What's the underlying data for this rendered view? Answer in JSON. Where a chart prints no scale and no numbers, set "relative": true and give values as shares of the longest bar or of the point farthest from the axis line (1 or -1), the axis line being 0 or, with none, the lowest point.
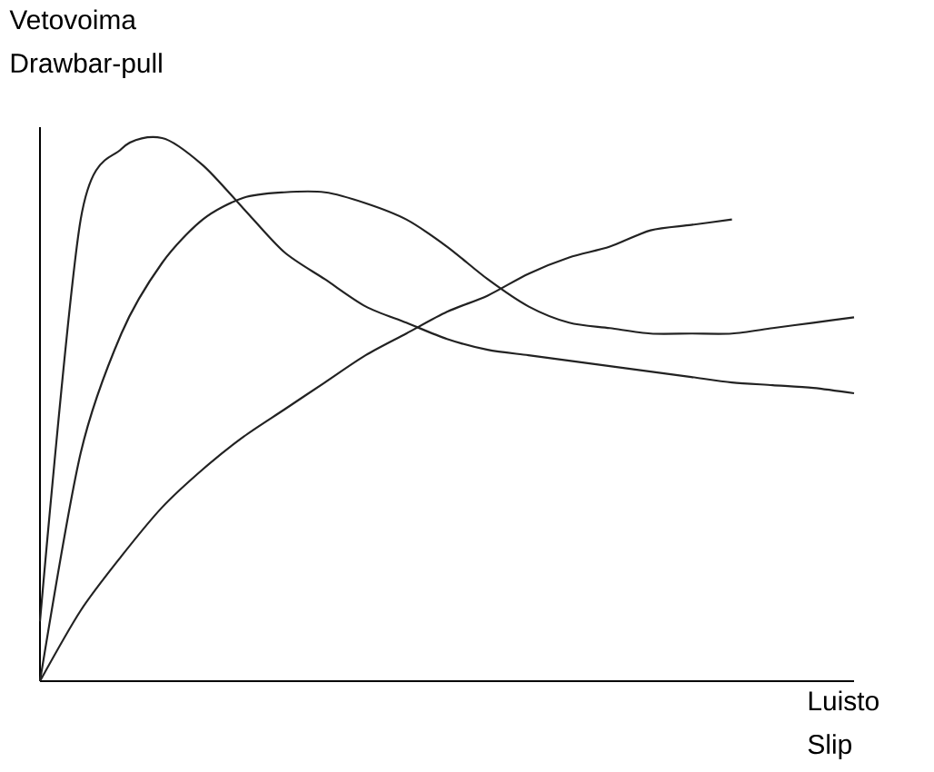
{
  "chart_data": {
    "type": "line",
    "relative": true,
    "xlabel": "Luisto Slip",
    "ylabel": "Vetovoima Drawbar-pull",
    "marker": "none",
    "line_style": "solid",
    "categories": [
      null,
      null,
      null,
      null,
      null,
      null,
      null,
      null,
      null,
      null,
      null,
      null,
      null,
      null,
      null,
      null,
      null,
      null,
      null,
      null,
      null
    ],
    "series": [
      {
        "color": "#222222",
        "values": [
          0.11,
          0.85,
          0.98,
          1.0,
          0.95,
          0.87,
          0.79,
          0.74,
          0.69,
          0.66,
          0.63,
          0.61,
          0.6,
          0.59,
          0.58,
          0.57,
          0.56,
          0.55,
          0.545,
          0.54,
          0.53
        ]
      },
      {
        "color": "#222222",
        "values": [
          0,
          0.42,
          0.64,
          0.77,
          0.85,
          0.89,
          0.9,
          0.9,
          0.88,
          0.85,
          0.8,
          0.74,
          0.69,
          0.66,
          0.65,
          0.64,
          0.64,
          0.64,
          0.65,
          0.66,
          0.67
        ]
      },
      {
        "color": "#222222",
        "values": [
          0,
          0.13,
          0.23,
          0.32,
          0.39,
          0.45,
          0.5,
          0.55,
          0.6,
          0.64,
          0.68,
          0.71,
          0.75,
          0.78,
          0.8,
          0.83,
          0.84,
          0.85,
          null,
          null,
          null
        ]
      }
    ]
  }
}
